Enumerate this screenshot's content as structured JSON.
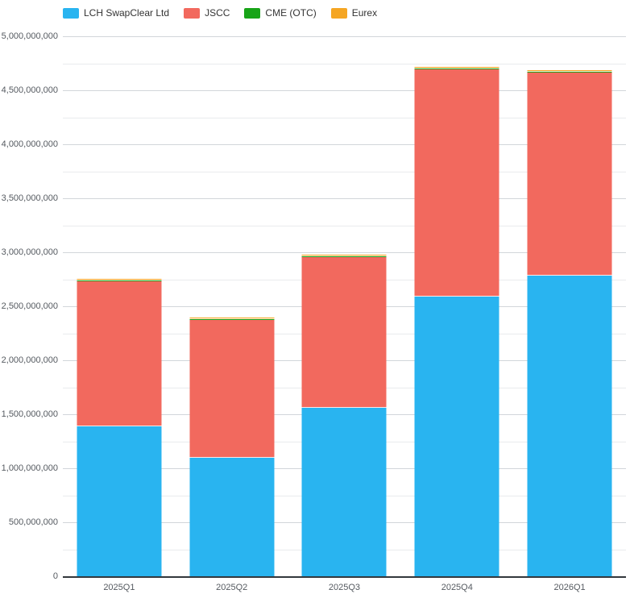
{
  "chart_data": {
    "type": "bar",
    "stacked": true,
    "title": "",
    "xlabel": "",
    "ylabel": "",
    "categories": [
      "2025Q1",
      "2025Q2",
      "2025Q3",
      "2025Q4",
      "2026Q1"
    ],
    "series": [
      {
        "name": "LCH SwapClear Ltd",
        "color": "#29b4f0",
        "values": [
          1390000000,
          1100000000,
          1560000000,
          2590000000,
          2780000000
        ]
      },
      {
        "name": "JSCC",
        "color": "#f2695e",
        "values": [
          1350000000,
          1280000000,
          1400000000,
          2110000000,
          1890000000
        ]
      },
      {
        "name": "CME (OTC)",
        "color": "#18a418",
        "values": [
          2000000,
          2000000,
          2000000,
          2000000,
          2000000
        ]
      },
      {
        "name": "Eurex",
        "color": "#f5a623",
        "values": [
          15000000,
          15000000,
          15000000,
          15000000,
          15000000
        ]
      }
    ],
    "y_axis": {
      "min": 0,
      "max": 5000000000,
      "label_interval": 500000000,
      "grid_interval": 250000000,
      "tick_labels": [
        "0",
        "500,000,000",
        "1,000,000,000",
        "1,500,000,000",
        "2,000,000,000",
        "2,500,000,000",
        "3,000,000,000",
        "3,500,000,000",
        "4,000,000,000",
        "4,500,000,000",
        "5,000,000,000"
      ]
    },
    "legend_position": "top-left",
    "grid": true
  }
}
